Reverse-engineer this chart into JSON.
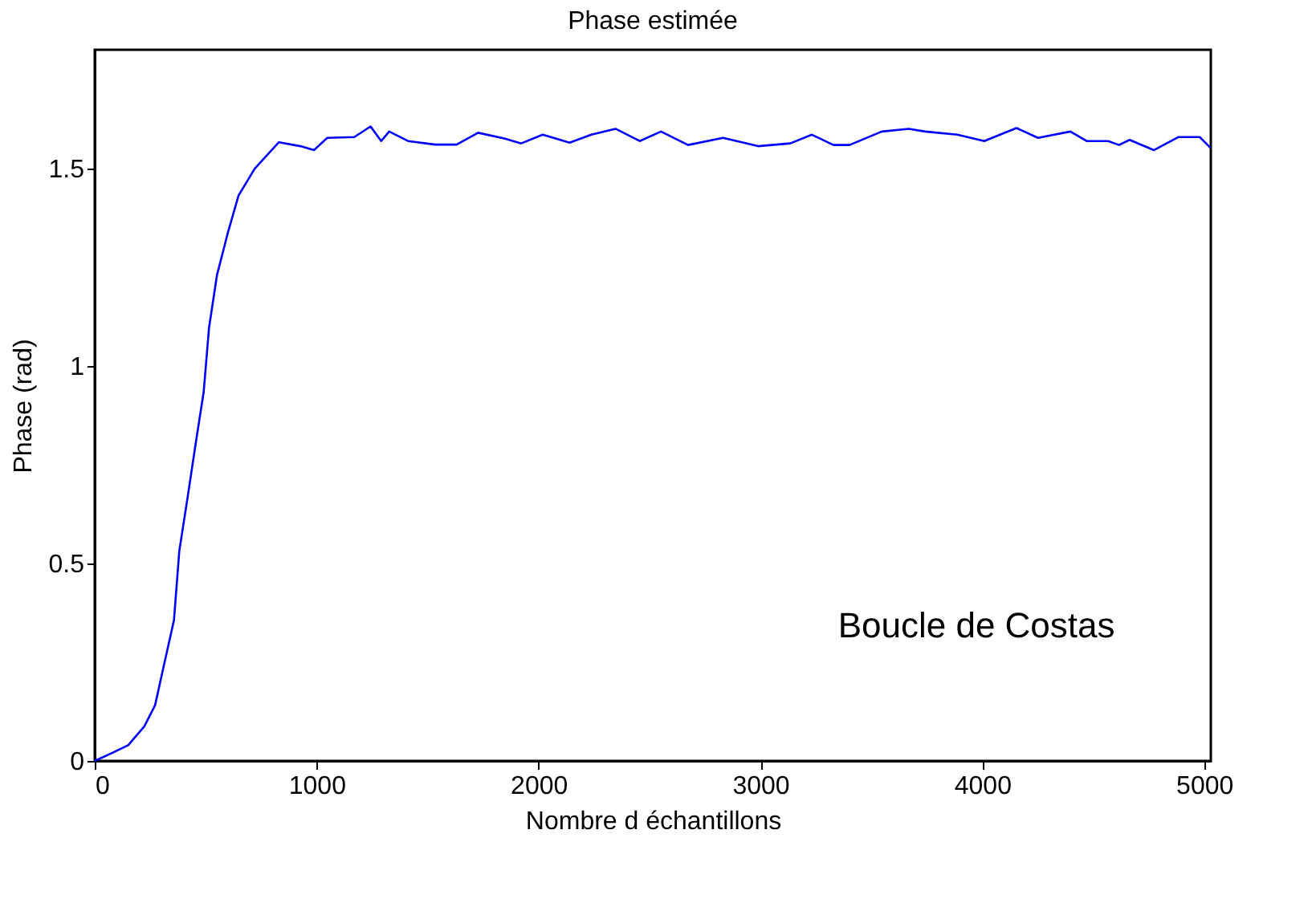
{
  "chart_data": {
    "type": "line",
    "title": "Phase estimée",
    "xlabel": "Nombre d échantillons",
    "ylabel": "Phase (rad)",
    "annotations": [
      "Boucle de Costas"
    ],
    "x": [
      0,
      78,
      151,
      223,
      272,
      309,
      357,
      381,
      418,
      454,
      491,
      515,
      551,
      600,
      648,
      721,
      830,
      927,
      988,
      1048,
      1170,
      1243,
      1291,
      1327,
      1412,
      1534,
      1631,
      1728,
      1849,
      1922,
      2019,
      2140,
      2238,
      2347,
      2456,
      2552,
      2674,
      2832,
      2989,
      3135,
      3232,
      3329,
      3402,
      3547,
      3669,
      3742,
      3887,
      4009,
      4154,
      4251,
      4397,
      4470,
      4567,
      4616,
      4664,
      4773,
      4883,
      4980,
      5028
    ],
    "series": [
      {
        "color": "#0000ff",
        "values": [
          0,
          0.02,
          0.04,
          0.087,
          0.141,
          0.235,
          0.356,
          0.531,
          0.665,
          0.8,
          0.934,
          1.096,
          1.23,
          1.337,
          1.431,
          1.499,
          1.566,
          1.556,
          1.546,
          1.577,
          1.579,
          1.606,
          1.569,
          1.593,
          1.569,
          1.56,
          1.56,
          1.59,
          1.575,
          1.563,
          1.585,
          1.565,
          1.585,
          1.6,
          1.569,
          1.593,
          1.559,
          1.577,
          1.556,
          1.563,
          1.585,
          1.559,
          1.559,
          1.593,
          1.6,
          1.593,
          1.585,
          1.569,
          1.602,
          1.577,
          1.593,
          1.569,
          1.569,
          1.559,
          1.572,
          1.546,
          1.579,
          1.579,
          1.552
        ]
      }
    ],
    "xlim": [
      0,
      5030
    ],
    "ylim": [
      0,
      1.8
    ],
    "xticks": [
      0,
      1000,
      2000,
      3000,
      4000,
      5000
    ],
    "yticks": [
      0,
      0.5,
      1,
      1.5
    ],
    "grid": false,
    "marker": "none",
    "line_style": "solid"
  }
}
